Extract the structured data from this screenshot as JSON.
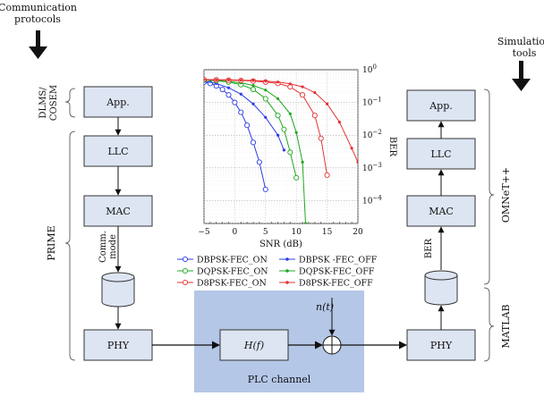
{
  "left_heading": [
    "Communication",
    "protocols"
  ],
  "right_heading": [
    "Simulation",
    "tools"
  ],
  "left_stack": {
    "app": "App.",
    "llc": "LLC",
    "mac": "MAC",
    "phy": "PHY",
    "comm_mode": [
      "Comm.",
      "mode"
    ]
  },
  "right_stack": {
    "app": "App.",
    "llc": "LLC",
    "mac": "MAC",
    "phy": "PHY",
    "ber_label": "BER"
  },
  "left_groups": {
    "dlms": [
      "DLMS/",
      "COSEM"
    ],
    "prime": "PRIME"
  },
  "right_groups": {
    "omnet": "OMNeT++",
    "matlab": "MATLAB"
  },
  "channel": {
    "label": "PLC channel",
    "hf": "H(f)",
    "noise": "n(t)",
    "fill_color": "#b4c7e7"
  },
  "colors": {
    "block_fill": "#dde5f3",
    "block_stroke": "#333333"
  },
  "chart_data": {
    "type": "line",
    "xlabel": "SNR (dB)",
    "ylabel": "BER",
    "xlim": [
      -5,
      20
    ],
    "ylim": [
      2e-05,
      1
    ],
    "yscale": "log",
    "grid": true,
    "xticks": [
      "−5",
      "0",
      "5",
      "10",
      "15",
      "20"
    ],
    "yticks": [
      {
        "base": "10",
        "exp": "0"
      },
      {
        "base": "10",
        "exp": "−1"
      },
      {
        "base": "10",
        "exp": "−2"
      },
      {
        "base": "10",
        "exp": "−3"
      },
      {
        "base": "10",
        "exp": "−4"
      }
    ],
    "legend_position": "below",
    "series": [
      {
        "name": "DBPSK-FEC_ON",
        "color": "#2b3ce6",
        "marker": "open-circle",
        "x": [
          -5,
          -4,
          -3,
          -2,
          -1,
          0,
          1,
          2,
          3,
          4,
          5
        ],
        "y": [
          0.42,
          0.38,
          0.32,
          0.25,
          0.17,
          0.1,
          0.05,
          0.02,
          0.006,
          0.0015,
          0.00022
        ]
      },
      {
        "name": "DBPSK -FEC_OFF",
        "color": "#2b3ce6",
        "marker": "dot",
        "x": [
          -5,
          -3,
          -1,
          1,
          3,
          5,
          7,
          8
        ],
        "y": [
          0.45,
          0.38,
          0.28,
          0.18,
          0.09,
          0.035,
          0.01,
          0.0035
        ]
      },
      {
        "name": "DQPSK-FEC_ON",
        "color": "#1ea81e",
        "marker": "open-circle",
        "x": [
          -5,
          -3,
          -1,
          1,
          3,
          5,
          7,
          8,
          9,
          10
        ],
        "y": [
          0.48,
          0.46,
          0.42,
          0.35,
          0.25,
          0.13,
          0.04,
          0.015,
          0.003,
          0.0005
        ]
      },
      {
        "name": "DQPSK-FEC_OFF",
        "color": "#1ea81e",
        "marker": "dot",
        "x": [
          -5,
          -3,
          -1,
          1,
          3,
          5,
          7,
          9,
          10,
          11,
          11.5
        ],
        "y": [
          0.49,
          0.47,
          0.44,
          0.4,
          0.33,
          0.24,
          0.13,
          0.045,
          0.012,
          0.0015,
          2e-05
        ]
      },
      {
        "name": "D8PSK-FEC_ON",
        "color": "#e63232",
        "marker": "open-circle",
        "x": [
          -5,
          -3,
          -1,
          1,
          3,
          5,
          7,
          9,
          11,
          13,
          14,
          15
        ],
        "y": [
          0.5,
          0.49,
          0.48,
          0.47,
          0.45,
          0.42,
          0.38,
          0.3,
          0.17,
          0.04,
          0.008,
          0.0006
        ]
      },
      {
        "name": "D8PSK-FEC_OFF",
        "color": "#e63232",
        "marker": "dot",
        "x": [
          -5,
          -3,
          -1,
          1,
          3,
          5,
          7,
          9,
          11,
          13,
          15,
          17,
          19,
          20
        ],
        "y": [
          0.5,
          0.49,
          0.49,
          0.48,
          0.47,
          0.45,
          0.42,
          0.37,
          0.3,
          0.2,
          0.09,
          0.025,
          0.004,
          0.0015
        ]
      }
    ]
  }
}
